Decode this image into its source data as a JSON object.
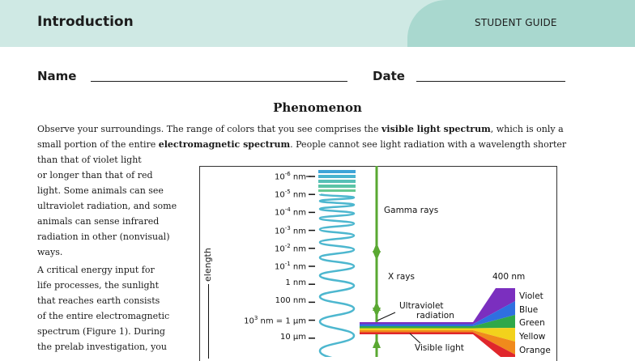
{
  "header": {
    "title": "Introduction",
    "guide_label": "STUDENT GUIDE"
  },
  "form": {
    "name_label": "Name",
    "date_label": "Date"
  },
  "section": {
    "title": "Phenomenon",
    "intro_line1_a": "Observe your surroundings. The range of colors that you see comprises the ",
    "intro_line1_b": "visible light spectrum",
    "intro_line1_c": ", which is only a",
    "intro_line2_a": "small portion of the entire ",
    "intro_line2_b": "electromagnetic spectrum",
    "intro_line2_c": ". People cannot see light radiation with a wavelength shorter",
    "left_lines": [
      "than that of violet light",
      "or longer than that of red",
      "light. Some animals can see",
      "ultraviolet radiation, and some",
      "animals can sense infrared",
      "radiation in other (nonvisual)",
      "ways."
    ],
    "left_lines2": [
      "A critical energy input for",
      "life processes, the sunlight",
      "that reaches earth consists",
      "of the entire electromagnetic",
      "spectrum (Figure 1). During",
      "the prelab investigation, you"
    ]
  },
  "figure": {
    "ticks": [
      {
        "base": "10",
        "exp": "-6",
        "unit": " nm"
      },
      {
        "base": "10",
        "exp": "-5",
        "unit": " nm"
      },
      {
        "base": "10",
        "exp": "-4",
        "unit": " nm"
      },
      {
        "base": "10",
        "exp": "-3",
        "unit": " nm"
      },
      {
        "base": "10",
        "exp": "-2",
        "unit": " nm"
      },
      {
        "base": "10",
        "exp": "-1",
        "unit": " nm"
      },
      {
        "base": "1 nm",
        "exp": "",
        "unit": ""
      },
      {
        "base": "100 nm",
        "exp": "",
        "unit": ""
      },
      {
        "base": "10",
        "exp": "3",
        "unit": " nm = 1 µm"
      },
      {
        "base": "10 µm",
        "exp": "",
        "unit": ""
      }
    ],
    "axis_title_visible": "elength",
    "gamma_label": "Gamma rays",
    "xray_label": "X rays",
    "uv_label_1": "Ultraviolet",
    "uv_label_2": "radiation",
    "visible_label": "Visible light",
    "nm400_label": "400 nm",
    "colors": [
      {
        "name": "Violet",
        "hex": "#7b2fbf"
      },
      {
        "name": "Blue",
        "hex": "#2f6fe0"
      },
      {
        "name": "Green",
        "hex": "#2fa84a"
      },
      {
        "name": "Yellow",
        "hex": "#f2d21c"
      },
      {
        "name": "Orange",
        "hex": "#f08a1c"
      }
    ],
    "red_hex": "#e0262b"
  }
}
